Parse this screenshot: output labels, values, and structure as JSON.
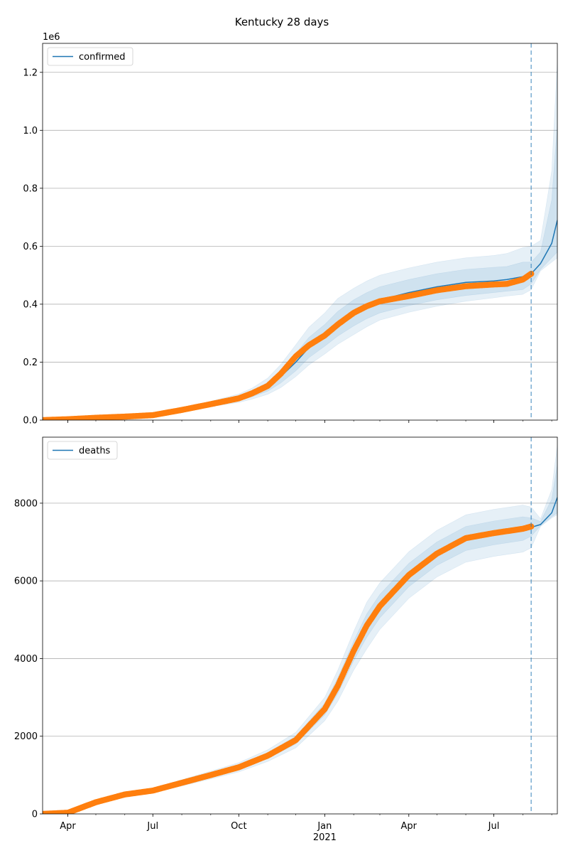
{
  "figure": {
    "title": "Kentucky 28 days"
  },
  "colors": {
    "model": "#1f77b4",
    "observed": "#ff7f0e",
    "band": "#1f77b4",
    "grid": "#b0b0b0"
  },
  "x_axis": {
    "tick_labels": [
      "Apr",
      "Jul",
      "Oct",
      "Jan",
      "Apr",
      "Jul"
    ],
    "tick_dates": [
      "2020-04-01",
      "2020-07-01",
      "2020-10-01",
      "2021-01-01",
      "2021-04-01",
      "2021-07-01"
    ],
    "year_label": "2021",
    "year_label_date": "2021-01-01",
    "range": [
      "2020-03-05",
      "2021-09-07"
    ],
    "forecast_start": "2021-08-10"
  },
  "chart_data": [
    {
      "type": "line",
      "legend": "confirmed",
      "legend_position": "upper left",
      "y_offset_label": "1e6",
      "ylim": [
        0,
        1300000
      ],
      "y_ticks": [
        0,
        200000,
        400000,
        600000,
        800000,
        1000000,
        1200000
      ],
      "y_tick_labels": [
        "0.0",
        "0.2",
        "0.4",
        "0.6",
        "0.8",
        "1.0",
        "1.2"
      ],
      "grid": "horizontal",
      "fit_line": {
        "x": [
          "2020-03-05",
          "2020-04-01",
          "2020-05-01",
          "2020-06-01",
          "2020-07-01",
          "2020-08-01",
          "2020-09-01",
          "2020-10-01",
          "2020-10-15",
          "2020-11-01",
          "2020-11-15",
          "2020-12-01",
          "2020-12-15",
          "2021-01-01",
          "2021-01-15",
          "2021-02-01",
          "2021-02-15",
          "2021-03-01",
          "2021-04-01",
          "2021-05-01",
          "2021-06-01",
          "2021-07-01",
          "2021-07-15",
          "2021-08-01",
          "2021-08-10",
          "2021-08-20",
          "2021-09-01",
          "2021-09-07"
        ],
        "y": [
          0,
          3000,
          8000,
          12000,
          18000,
          35000,
          55000,
          75000,
          90000,
          115000,
          150000,
          200000,
          250000,
          290000,
          330000,
          370000,
          395000,
          415000,
          440000,
          460000,
          475000,
          480000,
          485000,
          495000,
          505000,
          540000,
          610000,
          690000
        ]
      },
      "observed": {
        "x": [
          "2020-03-05",
          "2020-04-01",
          "2020-05-01",
          "2020-06-01",
          "2020-07-01",
          "2020-08-01",
          "2020-09-01",
          "2020-10-01",
          "2020-10-15",
          "2020-11-01",
          "2020-11-15",
          "2020-12-01",
          "2020-12-15",
          "2021-01-01",
          "2021-01-15",
          "2021-02-01",
          "2021-02-15",
          "2021-03-01",
          "2021-04-01",
          "2021-05-01",
          "2021-06-01",
          "2021-07-01",
          "2021-07-15",
          "2021-08-01",
          "2021-08-10"
        ],
        "y": [
          0,
          3000,
          8000,
          12000,
          17000,
          35000,
          55000,
          75000,
          92000,
          118000,
          160000,
          220000,
          258000,
          292000,
          330000,
          370000,
          393000,
          410000,
          428000,
          448000,
          462000,
          468000,
          470000,
          485000,
          505000
        ]
      },
      "bands": [
        {
          "y_low": [
            0,
            2800,
            7500,
            11000,
            16000,
            32000,
            50000,
            67000,
            80000,
            100000,
            128000,
            170000,
            215000,
            255000,
            290000,
            325000,
            350000,
            370000,
            395000,
            415000,
            430000,
            440000,
            445000,
            450000,
            470000,
            520000,
            560000,
            580000
          ],
          "y_high": [
            0,
            3200,
            8500,
            13000,
            20000,
            38000,
            60000,
            83000,
            100000,
            130000,
            172000,
            230000,
            285000,
            330000,
            375000,
            415000,
            440000,
            460000,
            485000,
            505000,
            520000,
            527000,
            530000,
            545000,
            545000,
            580000,
            760000,
            1020000
          ]
        },
        {
          "y_low": [
            0,
            2600,
            7000,
            10000,
            15000,
            29000,
            46000,
            61000,
            72000,
            89000,
            112000,
            150000,
            190000,
            228000,
            262000,
            295000,
            322000,
            345000,
            372000,
            393000,
            410000,
            422000,
            428000,
            434000,
            450000,
            515000,
            545000,
            560000
          ],
          "y_high": [
            0,
            3400,
            9000,
            14000,
            22000,
            41000,
            65000,
            90000,
            110000,
            145000,
            192000,
            260000,
            320000,
            370000,
            420000,
            455000,
            480000,
            500000,
            525000,
            545000,
            560000,
            568000,
            575000,
            595000,
            600000,
            620000,
            860000,
            1240000
          ]
        }
      ]
    },
    {
      "type": "line",
      "legend": "deaths",
      "legend_position": "upper left",
      "ylim": [
        0,
        9700
      ],
      "y_ticks": [
        0,
        2000,
        4000,
        6000,
        8000
      ],
      "y_tick_labels": [
        "0",
        "2000",
        "4000",
        "6000",
        "8000"
      ],
      "grid": "horizontal",
      "fit_line": {
        "x": [
          "2020-03-05",
          "2020-04-01",
          "2020-05-01",
          "2020-06-01",
          "2020-07-01",
          "2020-08-01",
          "2020-09-01",
          "2020-10-01",
          "2020-11-01",
          "2020-12-01",
          "2021-01-01",
          "2021-01-15",
          "2021-02-01",
          "2021-02-15",
          "2021-03-01",
          "2021-04-01",
          "2021-05-01",
          "2021-06-01",
          "2021-07-01",
          "2021-08-01",
          "2021-08-10",
          "2021-08-20",
          "2021-09-01",
          "2021-09-07"
        ],
        "y": [
          0,
          30,
          300,
          500,
          600,
          800,
          1000,
          1200,
          1500,
          1900,
          2700,
          3300,
          4200,
          4850,
          5350,
          6150,
          6700,
          7080,
          7220,
          7330,
          7380,
          7450,
          7750,
          8150
        ]
      },
      "observed": {
        "x": [
          "2020-03-05",
          "2020-04-01",
          "2020-05-01",
          "2020-06-01",
          "2020-07-01",
          "2020-08-01",
          "2020-09-01",
          "2020-10-01",
          "2020-11-01",
          "2020-12-01",
          "2021-01-01",
          "2021-01-15",
          "2021-02-01",
          "2021-02-15",
          "2021-03-01",
          "2021-04-01",
          "2021-05-01",
          "2021-06-01",
          "2021-07-01",
          "2021-08-01",
          "2021-08-10"
        ],
        "y": [
          0,
          30,
          300,
          500,
          600,
          800,
          1000,
          1200,
          1500,
          1900,
          2700,
          3300,
          4200,
          4850,
          5350,
          6150,
          6700,
          7100,
          7230,
          7340,
          7400
        ]
      },
      "bands": [
        {
          "y_low": [
            0,
            28,
            285,
            475,
            570,
            760,
            950,
            1140,
            1425,
            1800,
            2550,
            3100,
            3950,
            4550,
            5050,
            5850,
            6400,
            6780,
            6930,
            7040,
            7150,
            7420,
            7650,
            7750
          ],
          "y_high": [
            0,
            32,
            315,
            525,
            630,
            840,
            1050,
            1260,
            1575,
            2000,
            2850,
            3500,
            4450,
            5150,
            5650,
            6450,
            7000,
            7400,
            7540,
            7650,
            7620,
            7530,
            8100,
            9000
          ]
        },
        {
          "y_low": [
            0,
            26,
            270,
            450,
            540,
            720,
            900,
            1080,
            1350,
            1700,
            2400,
            2900,
            3700,
            4250,
            4750,
            5550,
            6100,
            6480,
            6630,
            6740,
            6850,
            7400,
            7620,
            7700
          ],
          "y_high": [
            0,
            34,
            330,
            550,
            660,
            880,
            1100,
            1320,
            1650,
            2100,
            3000,
            3700,
            4700,
            5450,
            5950,
            6750,
            7300,
            7700,
            7840,
            7950,
            7900,
            7600,
            8350,
            9500
          ]
        }
      ]
    }
  ]
}
